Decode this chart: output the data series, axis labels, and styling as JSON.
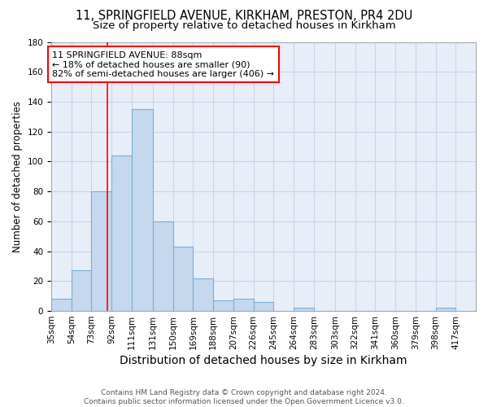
{
  "title1": "11, SPRINGFIELD AVENUE, KIRKHAM, PRESTON, PR4 2DU",
  "title2": "Size of property relative to detached houses in Kirkham",
  "xlabel": "Distribution of detached houses by size in Kirkham",
  "ylabel": "Number of detached properties",
  "bins": [
    35,
    54,
    73,
    92,
    111,
    131,
    150,
    169,
    188,
    207,
    226,
    245,
    264,
    283,
    303,
    322,
    341,
    360,
    379,
    398,
    417
  ],
  "counts": [
    8,
    27,
    80,
    104,
    135,
    60,
    43,
    22,
    7,
    8,
    6,
    0,
    2,
    0,
    0,
    0,
    0,
    0,
    0,
    2
  ],
  "bar_color": "#c5d8ee",
  "bar_edge_color": "#7bafd4",
  "grid_color": "#c8d4e8",
  "background_color": "#e8eef8",
  "red_line_x": 88,
  "annotation_text": "11 SPRINGFIELD AVENUE: 88sqm\n← 18% of detached houses are smaller (90)\n82% of semi-detached houses are larger (406) →",
  "annotation_box_color": "white",
  "annotation_box_edge": "red",
  "ylim": [
    0,
    180
  ],
  "footer": "Contains HM Land Registry data © Crown copyright and database right 2024.\nContains public sector information licensed under the Open Government Licence v3.0.",
  "title1_fontsize": 10.5,
  "title2_fontsize": 9.5,
  "xlabel_fontsize": 10,
  "ylabel_fontsize": 8.5,
  "tick_fontsize": 7.5,
  "footer_fontsize": 6.5,
  "annotation_fontsize": 8
}
